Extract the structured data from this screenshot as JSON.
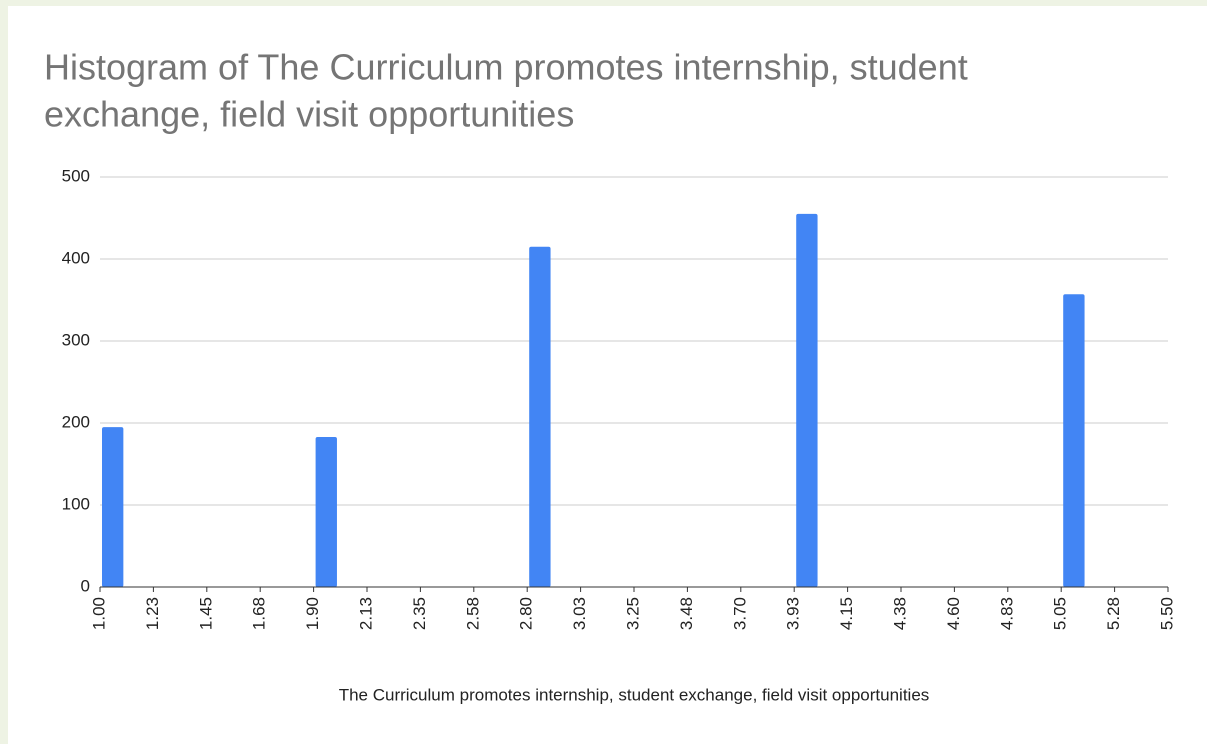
{
  "chart_data": {
    "type": "histogram",
    "title": "Histogram of The Curriculum promotes internship, student exchange, field visit opportunities",
    "title_lines": [
      "Histogram of The Curriculum promotes internship, student",
      "exchange, field visit opportunities"
    ],
    "x_label": "The Curriculum promotes internship, student exchange, field visit opportunities",
    "bins": [
      1,
      1.225,
      1.45,
      1.675,
      1.9,
      2.125,
      2.35,
      2.575,
      2.8,
      3.025,
      3.25,
      3.475,
      3.7,
      3.925,
      4.15,
      4.375,
      4.6,
      4.825,
      5.05,
      5.275,
      5.5
    ],
    "values": [
      195,
      0,
      0,
      0,
      183,
      0,
      0,
      0,
      415,
      0,
      0,
      0,
      0,
      455,
      0,
      0,
      0,
      0,
      357,
      0
    ],
    "color": "#4285f4",
    "xlim": [
      1,
      5.5
    ],
    "xticks": [
      {
        "value": 1,
        "label": "1.00"
      },
      {
        "value": 1.225,
        "label": "1.23"
      },
      {
        "value": 1.45,
        "label": "1.45"
      },
      {
        "value": 1.675,
        "label": "1.68"
      },
      {
        "value": 1.9,
        "label": "1.90"
      },
      {
        "value": 2.125,
        "label": "2.13"
      },
      {
        "value": 2.35,
        "label": "2.35"
      },
      {
        "value": 2.575,
        "label": "2.58"
      },
      {
        "value": 2.8,
        "label": "2.80"
      },
      {
        "value": 3.025,
        "label": "3.03"
      },
      {
        "value": 3.25,
        "label": "3.25"
      },
      {
        "value": 3.475,
        "label": "3.48"
      },
      {
        "value": 3.7,
        "label": "3.70"
      },
      {
        "value": 3.925,
        "label": "3.93"
      },
      {
        "value": 4.15,
        "label": "4.15"
      },
      {
        "value": 4.375,
        "label": "4.38"
      },
      {
        "value": 4.6,
        "label": "4.60"
      },
      {
        "value": 4.825,
        "label": "4.83"
      },
      {
        "value": 5.05,
        "label": "5.05"
      },
      {
        "value": 5.275,
        "label": "5.28"
      },
      {
        "value": 5.5,
        "label": "5.50"
      }
    ],
    "ylim": [
      0,
      500
    ],
    "yticks": [
      0,
      100,
      200,
      300,
      400,
      500
    ],
    "grid": true
  }
}
